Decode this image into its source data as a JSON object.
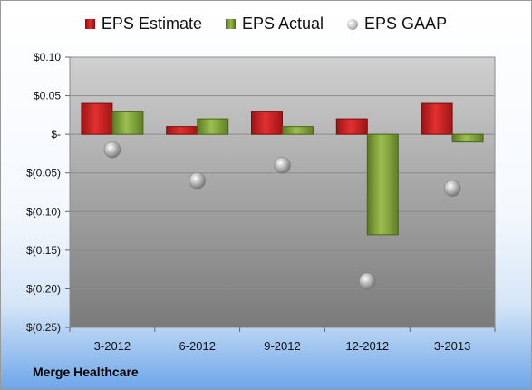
{
  "legend": {
    "estimate_label": "EPS Estimate",
    "actual_label": "EPS Actual",
    "gaap_label": "EPS GAAP"
  },
  "company": "Merge Healthcare",
  "colors": {
    "estimate": "#c81e1e",
    "actual": "#7a9a34",
    "gaap": "#a8a8a8",
    "plot_top": "#d0d0d0",
    "plot_bottom": "#7a7a7a"
  },
  "chart_data": {
    "type": "bar",
    "categories": [
      "3-2012",
      "6-2012",
      "9-2012",
      "12-2012",
      "3-2013"
    ],
    "series": [
      {
        "name": "EPS Estimate",
        "values": [
          0.04,
          0.01,
          0.03,
          0.02,
          0.04
        ]
      },
      {
        "name": "EPS Actual",
        "values": [
          0.03,
          0.02,
          0.01,
          -0.13,
          -0.01
        ]
      },
      {
        "name": "EPS GAAP",
        "values": [
          -0.02,
          -0.06,
          -0.04,
          -0.19,
          -0.07
        ],
        "marker": "sphere"
      }
    ],
    "ylim": [
      -0.25,
      0.1
    ],
    "yticks": [
      0.1,
      0.05,
      0,
      -0.05,
      -0.1,
      -0.15,
      -0.2,
      -0.25
    ],
    "ytick_labels": [
      "$0.10",
      "$0.05",
      "$-",
      "$(0.05)",
      "$(0.10)",
      "$(0.15)",
      "$(0.20)",
      "$(0.25)"
    ],
    "grid": true,
    "legend_position": "top"
  }
}
